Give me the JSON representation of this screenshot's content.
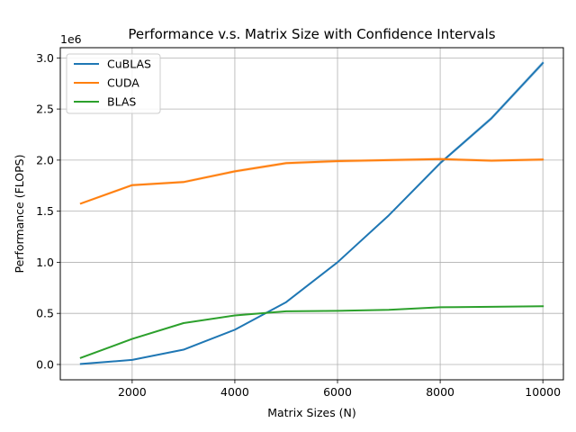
{
  "chart_data": {
    "type": "line",
    "title": "Performance v.s. Matrix Size with Confidence Intervals",
    "xlabel": "Matrix Sizes (N)",
    "ylabel": "Performance (FLOPS)",
    "y_offset_label": "1e6",
    "xlim": [
      600,
      10400
    ],
    "ylim": [
      -0.15,
      3.1
    ],
    "x_ticks": [
      2000,
      4000,
      6000,
      8000,
      10000
    ],
    "x_tick_labels": [
      "2000",
      "4000",
      "6000",
      "8000",
      "10000"
    ],
    "y_ticks": [
      0.0,
      0.5,
      1.0,
      1.5,
      2.0,
      2.5,
      3.0
    ],
    "y_tick_labels": [
      "0.0",
      "0.5",
      "1.0",
      "1.5",
      "2.0",
      "2.5",
      "3.0"
    ],
    "grid": true,
    "legend_position": "top-left",
    "x": [
      1000,
      2000,
      3000,
      4000,
      5000,
      6000,
      7000,
      8000,
      9000,
      10000
    ],
    "series": [
      {
        "name": "CuBLAS",
        "color": "#1f77b4",
        "values": [
          0.005,
          0.045,
          0.145,
          0.34,
          0.61,
          1.0,
          1.46,
          1.97,
          2.41,
          2.95
        ]
      },
      {
        "name": "CUDA",
        "color": "#ff7f0e",
        "values": [
          1.575,
          1.755,
          1.785,
          1.89,
          1.97,
          1.99,
          2.0,
          2.01,
          1.995,
          2.005
        ]
      },
      {
        "name": "BLAS",
        "color": "#2ca02c",
        "values": [
          0.065,
          0.25,
          0.405,
          0.48,
          0.52,
          0.525,
          0.535,
          0.56,
          0.565,
          0.57
        ]
      }
    ]
  }
}
